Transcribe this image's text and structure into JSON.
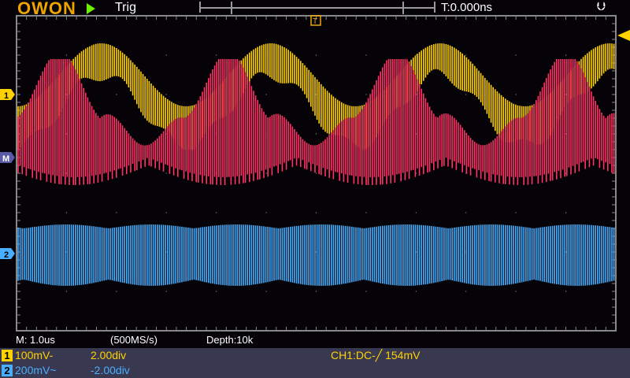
{
  "header": {
    "logo": "OWON",
    "run_state_icon": "play-icon",
    "trigger_status": "Trig",
    "trigger_time": "T:0.000ns",
    "usb_icon": "usb-icon"
  },
  "markers": {
    "ch1": "1",
    "math": "M",
    "ch2": "2",
    "trigger": "T"
  },
  "status": {
    "timebase": "M: 1.0us",
    "sample_rate": "(500MS/s)",
    "depth": "Depth:10k"
  },
  "channels": [
    {
      "num": "1",
      "scale": "100mV-",
      "offset": "2.00div",
      "color": "#ffd200"
    },
    {
      "num": "2",
      "scale": "200mV~",
      "offset": "-2.00div",
      "color": "#4aaeff"
    }
  ],
  "trigger_info": "CH1:DC-╱ 154mV",
  "colors": {
    "ch1": "#ffd200",
    "ch2": "#4aaeff",
    "math": "#ff3366",
    "grid": "#888888",
    "panel": "#383850"
  }
}
